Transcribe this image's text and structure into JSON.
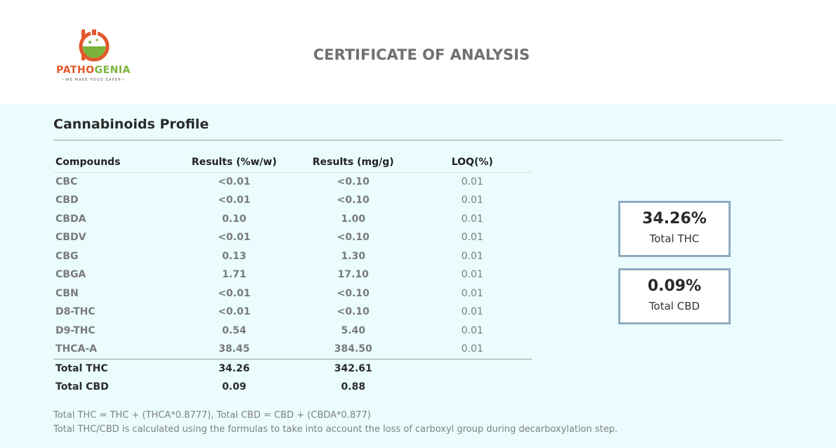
{
  "logo": {
    "word_part1": "PATHO",
    "word_part2": "GENIA",
    "tagline": "WE MAKE FOOD SAFER"
  },
  "title": "CERTIFICATE OF ANALYSIS",
  "section_title": "Cannabinoids Profile",
  "table": {
    "headers": [
      "Compounds",
      "Results (%w/w)",
      "Results (mg/g)",
      "LOQ(%)"
    ],
    "rows": [
      [
        "CBC",
        "<0.01",
        "<0.10",
        "0.01"
      ],
      [
        "CBD",
        "<0.01",
        "<0.10",
        "0.01"
      ],
      [
        "CBDA",
        "0.10",
        "1.00",
        "0.01"
      ],
      [
        "CBDV",
        "<0.01",
        "<0.10",
        "0.01"
      ],
      [
        "CBG",
        "0.13",
        "1.30",
        "0.01"
      ],
      [
        "CBGA",
        "1.71",
        "17.10",
        "0.01"
      ],
      [
        "CBN",
        "<0.01",
        "<0.10",
        "0.01"
      ],
      [
        "D8-THC",
        "<0.01",
        "<0.10",
        "0.01"
      ],
      [
        "D9-THC",
        "0.54",
        "5.40",
        "0.01"
      ],
      [
        "THCA-A",
        "38.45",
        "384.50",
        "0.01"
      ]
    ],
    "totals": [
      [
        "Total THC",
        "34.26",
        "342.61",
        ""
      ],
      [
        "Total CBD",
        "0.09",
        "0.88",
        ""
      ]
    ]
  },
  "summary": {
    "thc": {
      "value": "34.26%",
      "label": "Total THC"
    },
    "cbd": {
      "value": "0.09%",
      "label": "Total CBD"
    }
  },
  "notes": [
    "Total THC = THC + (THCA*0.8777), Total CBD = CBD + (CBDA*0.877)",
    "Total THC/CBD is calculated using the formulas to take into account the loss of carboxyl group during decarboxylation step."
  ],
  "colors": {
    "logo_orange": "#e2572b",
    "logo_green": "#7ab43a",
    "panel_bg": "#eafcfd",
    "box_border": "#8eaac0"
  }
}
